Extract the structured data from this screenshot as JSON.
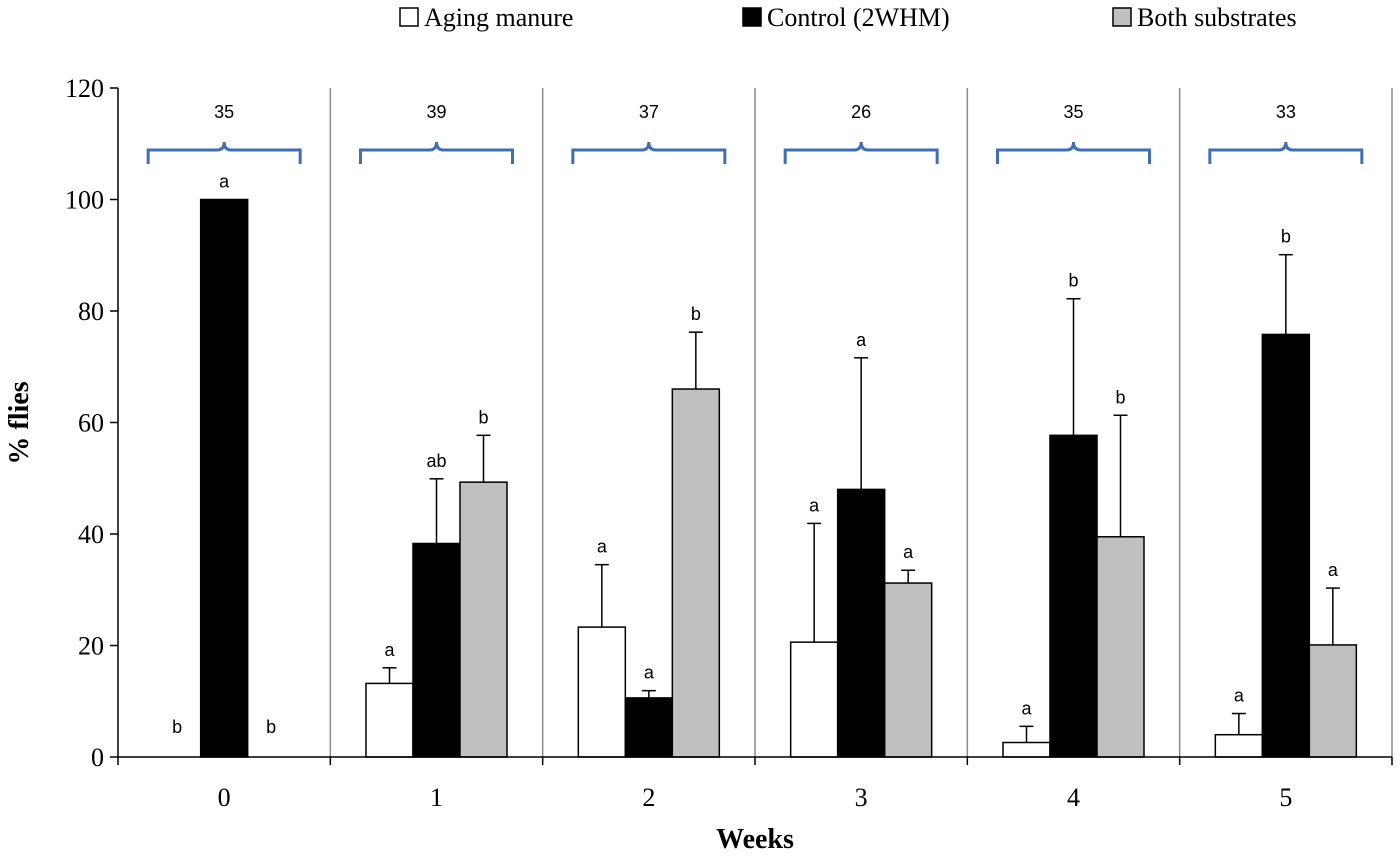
{
  "chart_data": {
    "type": "bar",
    "title": "",
    "xlabel": "Weeks",
    "ylabel": "% flies",
    "ylim": [
      0,
      120
    ],
    "yticks": [
      0,
      20,
      40,
      60,
      80,
      100,
      120
    ],
    "categories": [
      "0",
      "1",
      "2",
      "3",
      "4",
      "5"
    ],
    "group_n": [
      "35",
      "39",
      "37",
      "26",
      "35",
      "33"
    ],
    "series": [
      {
        "name": "Aging manure",
        "color": "#ffffff",
        "values": [
          0,
          13.2,
          23.3,
          20.6,
          2.6,
          4
        ],
        "errors": [
          0,
          2.8,
          11.2,
          21.3,
          2.9,
          3.8
        ],
        "letters": [
          "b",
          "a",
          "a",
          "a",
          "a",
          "a"
        ]
      },
      {
        "name": "Control (2WHM)",
        "color": "#000000",
        "values": [
          100,
          38.3,
          10.6,
          48,
          57.7,
          75.8
        ],
        "errors": [
          0,
          11.6,
          1.3,
          23.6,
          24.5,
          14.3
        ],
        "letters": [
          "a",
          "ab",
          "a",
          "a",
          "b",
          "b"
        ]
      },
      {
        "name": "Both substrates",
        "color": "#c0c0c0",
        "values": [
          0,
          49.3,
          66,
          31.2,
          39.5,
          20.1
        ],
        "errors": [
          0,
          8.4,
          10.2,
          2.3,
          21.8,
          10.2
        ],
        "letters": [
          "b",
          "b",
          "b",
          "a",
          "b",
          "a"
        ]
      }
    ],
    "legend_position": "top"
  }
}
